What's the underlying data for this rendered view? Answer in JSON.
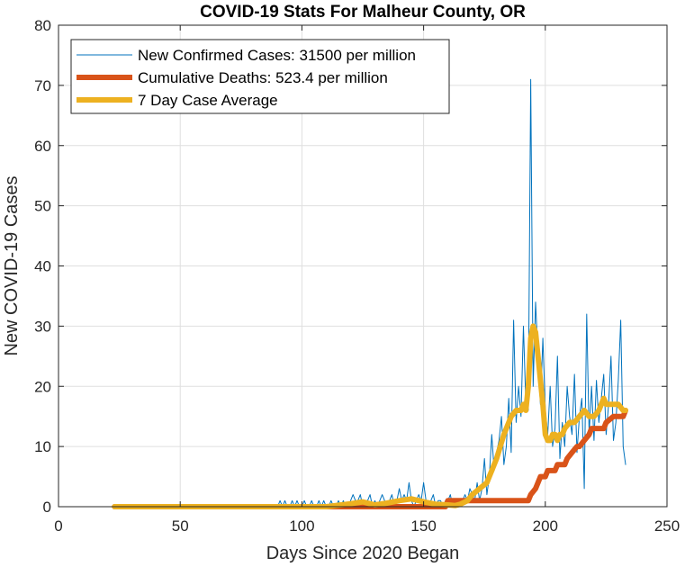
{
  "chart_data": {
    "type": "line",
    "title": "COVID-19 Stats For Malheur County, OR",
    "xlabel": "Days Since 2020 Began",
    "ylabel": "New COVID-19 Cases",
    "xlim": [
      0,
      250
    ],
    "ylim": [
      0,
      80
    ],
    "xticks": [
      0,
      50,
      100,
      150,
      200,
      250
    ],
    "yticks": [
      0,
      10,
      20,
      30,
      40,
      50,
      60,
      70,
      80
    ],
    "grid": true,
    "legend_position": "top-left",
    "series": [
      {
        "name": "New Confirmed Cases: 31500 per million",
        "color": "#0072BD",
        "x": [
          23,
          30,
          40,
          50,
          60,
          70,
          80,
          85,
          90,
          91,
          92,
          93,
          94,
          95,
          96,
          97,
          98,
          99,
          100,
          101,
          102,
          103,
          104,
          105,
          106,
          107,
          108,
          109,
          110,
          111,
          112,
          113,
          114,
          115,
          116,
          117,
          118,
          119,
          120,
          121,
          122,
          123,
          124,
          125,
          126,
          127,
          128,
          129,
          130,
          131,
          132,
          133,
          134,
          135,
          136,
          137,
          138,
          139,
          140,
          141,
          142,
          143,
          144,
          145,
          146,
          147,
          148,
          149,
          150,
          151,
          152,
          153,
          154,
          155,
          156,
          157,
          158,
          159,
          160,
          161,
          162,
          163,
          164,
          165,
          166,
          167,
          168,
          169,
          170,
          171,
          172,
          173,
          174,
          175,
          176,
          177,
          178,
          179,
          180,
          181,
          182,
          183,
          184,
          185,
          186,
          187,
          188,
          189,
          190,
          191,
          192,
          193,
          194,
          195,
          196,
          197,
          198,
          199,
          200,
          201,
          202,
          203,
          204,
          205,
          206,
          207,
          208,
          209,
          210,
          211,
          212,
          213,
          214,
          215,
          216,
          217,
          218,
          219,
          220,
          221,
          222,
          223,
          224,
          225,
          226,
          227,
          228,
          229,
          230,
          231,
          232,
          233
        ],
        "y": [
          0,
          0,
          0,
          0,
          0,
          0,
          0,
          0,
          0,
          1,
          0,
          1,
          0,
          0,
          1,
          0,
          1,
          0,
          0,
          1,
          0,
          0,
          1,
          0,
          0,
          1,
          0,
          1,
          0,
          0,
          1,
          0,
          0,
          1,
          0,
          1,
          0,
          0,
          1,
          2,
          1,
          1,
          2,
          0,
          1,
          1,
          2,
          0,
          1,
          0,
          1,
          2,
          1,
          0,
          1,
          2,
          0,
          1,
          3,
          1,
          2,
          1,
          4,
          1,
          0,
          1,
          2,
          1,
          4,
          1,
          0,
          1,
          2,
          0,
          1,
          1,
          0,
          1,
          1,
          2,
          0,
          1,
          0,
          1,
          1,
          2,
          1,
          3,
          2,
          1,
          4,
          1,
          3,
          8,
          2,
          5,
          12,
          6,
          9,
          11,
          15,
          7,
          10,
          18,
          9,
          31,
          14,
          20,
          15,
          30,
          17,
          16,
          71,
          20,
          34,
          25,
          17,
          28,
          16,
          12,
          20,
          10,
          13,
          25,
          8,
          14,
          10,
          20,
          15,
          12,
          22,
          9,
          15,
          18,
          3,
          32,
          12,
          20,
          11,
          21,
          14,
          18,
          22,
          12,
          17,
          25,
          11,
          14,
          21,
          31,
          10,
          7
        ]
      },
      {
        "name": "Cumulative Deaths: 523.4 per million",
        "color": "#D95319",
        "x": [
          23,
          159,
          160,
          161,
          180,
          193,
          194,
          196,
          197,
          198,
          200,
          201,
          204,
          205,
          208,
          209,
          211,
          213,
          214,
          216,
          218,
          219,
          224,
          225,
          228,
          232,
          233
        ],
        "y": [
          0,
          0,
          1,
          1,
          1,
          1,
          2,
          3,
          4,
          5,
          5,
          6,
          6,
          7,
          7,
          8,
          9,
          10,
          10,
          11,
          12,
          13,
          13,
          14,
          15,
          15,
          16
        ]
      },
      {
        "name": "7 Day Case Average",
        "color": "#EDB120",
        "x": [
          23,
          90,
          100,
          110,
          120,
          125,
          128,
          130,
          135,
          140,
          145,
          150,
          155,
          160,
          163,
          165,
          168,
          170,
          173,
          176,
          180,
          183,
          186,
          188,
          190,
          191,
          192,
          193,
          194,
          195,
          196,
          197,
          198,
          199,
          200,
          201,
          202,
          203,
          204,
          205,
          206,
          207,
          208,
          210,
          212,
          214,
          216,
          218,
          220,
          222,
          224,
          225,
          226,
          228,
          230,
          232,
          233
        ],
        "y": [
          0,
          0,
          0,
          0,
          0.5,
          0.8,
          0.5,
          0.3,
          0.6,
          1,
          1.3,
          0.8,
          0.4,
          0.3,
          0.2,
          0.4,
          1,
          2,
          3,
          4,
          8,
          12,
          15,
          16,
          16,
          17,
          16,
          20,
          28,
          30,
          29,
          25,
          21,
          17,
          12,
          11,
          11,
          12,
          12,
          11,
          12,
          12,
          13,
          14,
          14,
          15,
          16,
          15,
          15,
          16,
          18,
          17,
          17,
          17,
          17,
          16,
          16
        ]
      }
    ]
  }
}
